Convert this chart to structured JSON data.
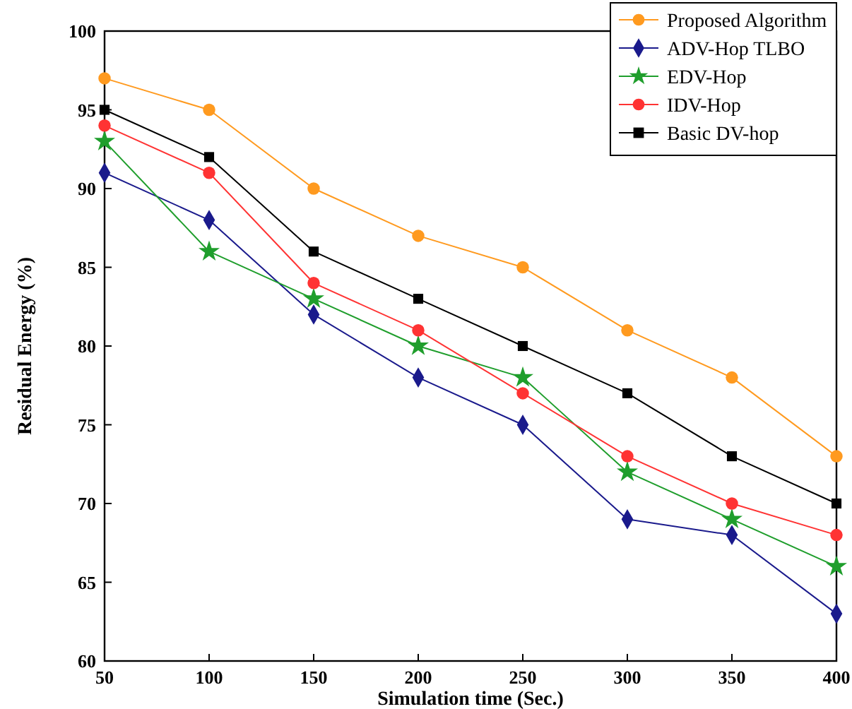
{
  "chart_data": {
    "type": "line",
    "xlabel": "Simulation time (Sec.)",
    "ylabel": "Residual Energy (%)",
    "x": [
      50,
      100,
      150,
      200,
      250,
      300,
      350,
      400
    ],
    "xlim": [
      50,
      400
    ],
    "xticks": [
      50,
      100,
      150,
      200,
      250,
      300,
      350,
      400
    ],
    "ylim": [
      60,
      100
    ],
    "yticks": [
      60,
      65,
      70,
      75,
      80,
      85,
      90,
      95,
      100
    ],
    "grid": false,
    "legend": "top right",
    "line_style": "solid",
    "series": [
      {
        "name": "Proposed Algorithm",
        "color": "#ff9a1f",
        "marker": "circle",
        "values": [
          97,
          95,
          90,
          87,
          85,
          81,
          78,
          73
        ]
      },
      {
        "name": "ADV-Hop TLBO",
        "color": "#1a1a8c",
        "marker": "diamond",
        "values": [
          91,
          88,
          82,
          78,
          75,
          69,
          68,
          63
        ]
      },
      {
        "name": "EDV-Hop",
        "color": "#1f9e2c",
        "marker": "star",
        "values": [
          93,
          86,
          83,
          80,
          78,
          72,
          69,
          66
        ]
      },
      {
        "name": "IDV-Hop",
        "color": "#ff3333",
        "marker": "circle",
        "values": [
          94,
          91,
          84,
          81,
          77,
          73,
          70,
          68
        ]
      },
      {
        "name": "Basic DV-hop",
        "color": "#000000",
        "marker": "square",
        "values": [
          95,
          92,
          86,
          83,
          80,
          77,
          73,
          70
        ]
      }
    ]
  }
}
